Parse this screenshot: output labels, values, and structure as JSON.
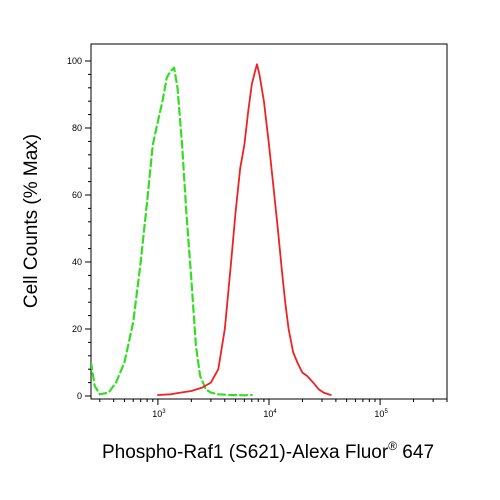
{
  "chart_data": {
    "type": "line",
    "title": "",
    "xlabel": "Phospho-Raf1 (S621)-Alexa Fluor",
    "xlabel_superscript": "®",
    "xlabel_suffix": " 647",
    "ylabel": "Cell Counts (% Max)",
    "x_scale": "log",
    "xlim": [
      250,
      400000
    ],
    "ylim": [
      0,
      103
    ],
    "y_ticks": [
      "0",
      "20",
      "40",
      "60",
      "80",
      "100"
    ],
    "x_ticks": [
      {
        "base": "10",
        "exp": "3",
        "value": 1000
      },
      {
        "base": "10",
        "exp": "4",
        "value": 10000
      },
      {
        "base": "10",
        "exp": "5",
        "value": 100000
      }
    ],
    "grid": false,
    "legend": "none",
    "series": [
      {
        "color": "#33dd22",
        "dash": "dashed",
        "points": [
          [
            250,
            10
          ],
          [
            270,
            3
          ],
          [
            300,
            0.5
          ],
          [
            360,
            1
          ],
          [
            420,
            4
          ],
          [
            500,
            10
          ],
          [
            600,
            22
          ],
          [
            700,
            40
          ],
          [
            800,
            58
          ],
          [
            900,
            75
          ],
          [
            1000,
            82
          ],
          [
            1100,
            88
          ],
          [
            1200,
            95
          ],
          [
            1300,
            97
          ],
          [
            1400,
            98
          ],
          [
            1500,
            92
          ],
          [
            1650,
            75
          ],
          [
            1800,
            55
          ],
          [
            2000,
            35
          ],
          [
            2200,
            15
          ],
          [
            2400,
            6
          ],
          [
            2700,
            2
          ],
          [
            3000,
            1
          ],
          [
            3500,
            0.5
          ],
          [
            4500,
            0.3
          ],
          [
            6000,
            0.2
          ],
          [
            7000,
            0.3
          ]
        ]
      },
      {
        "color": "#ee2222",
        "dash": "solid",
        "points": [
          [
            1000,
            0.3
          ],
          [
            1300,
            0.5
          ],
          [
            1600,
            1
          ],
          [
            2000,
            1.5
          ],
          [
            2500,
            2.5
          ],
          [
            3000,
            4
          ],
          [
            3500,
            8
          ],
          [
            4000,
            20
          ],
          [
            4500,
            38
          ],
          [
            5000,
            55
          ],
          [
            5500,
            68
          ],
          [
            6000,
            75
          ],
          [
            6500,
            85
          ],
          [
            7000,
            93
          ],
          [
            7500,
            97
          ],
          [
            7800,
            99
          ],
          [
            8200,
            96
          ],
          [
            9000,
            88
          ],
          [
            10000,
            75
          ],
          [
            11000,
            62
          ],
          [
            12000,
            50
          ],
          [
            13000,
            38
          ],
          [
            14000,
            28
          ],
          [
            15000,
            20
          ],
          [
            16500,
            13
          ],
          [
            18000,
            10
          ],
          [
            20000,
            7
          ],
          [
            22000,
            6
          ],
          [
            25000,
            4
          ],
          [
            28000,
            2
          ],
          [
            31000,
            1
          ],
          [
            36000,
            0.3
          ]
        ]
      }
    ]
  }
}
